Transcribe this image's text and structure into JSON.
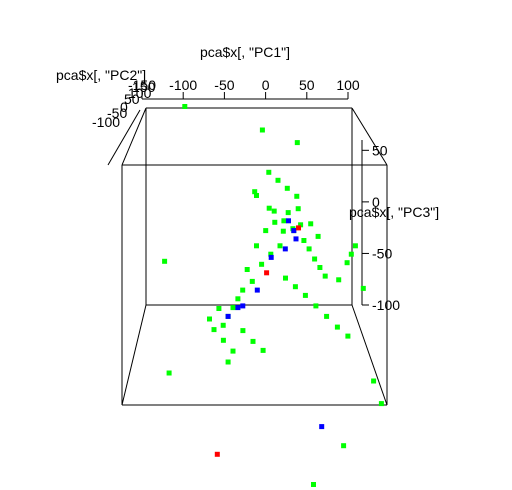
{
  "chart_data": {
    "type": "scatter3d",
    "title": "",
    "axes": {
      "x": {
        "label": "pca$x[, \"PC1\"]",
        "ticks": [
          "-150",
          "-100",
          "-50",
          "0",
          "50",
          "100"
        ],
        "range": [
          -150,
          100
        ]
      },
      "y": {
        "label": "pca$x[, \"PC2\"]",
        "ticks": [
          "-100",
          "-50",
          "0",
          "50",
          "100",
          "150"
        ],
        "range": [
          -100,
          150
        ]
      },
      "z": {
        "label": "pca$x[, \"PC3\"]",
        "ticks": [
          "50",
          "0",
          "-50",
          "-100"
        ],
        "range": [
          -100,
          60
        ]
      }
    },
    "box": true,
    "grid": false,
    "legend": "none",
    "series": [
      {
        "color": "#00ff00",
        "points": [
          [
            -10,
            120,
            48
          ],
          [
            -20,
            90,
            6
          ],
          [
            -18,
            90,
            3
          ],
          [
            30,
            110,
            40
          ],
          [
            0,
            50,
            0
          ],
          [
            10,
            40,
            -5
          ],
          [
            20,
            30,
            -10
          ],
          [
            30,
            20,
            -15
          ],
          [
            35,
            15,
            -20
          ],
          [
            40,
            5,
            -25
          ],
          [
            45,
            0,
            -30
          ],
          [
            50,
            -5,
            -35
          ],
          [
            25,
            35,
            5
          ],
          [
            15,
            45,
            0
          ],
          [
            5,
            25,
            -20
          ],
          [
            -5,
            20,
            -25
          ],
          [
            -15,
            10,
            -30
          ],
          [
            -25,
            0,
            -40
          ],
          [
            -35,
            -5,
            -45
          ],
          [
            -40,
            -10,
            -50
          ],
          [
            -45,
            -15,
            -55
          ],
          [
            -50,
            -20,
            -60
          ],
          [
            -55,
            -25,
            -65
          ],
          [
            -30,
            15,
            -35
          ],
          [
            -20,
            25,
            -20
          ],
          [
            -10,
            30,
            -10
          ],
          [
            0,
            35,
            -5
          ],
          [
            10,
            10,
            -40
          ],
          [
            20,
            5,
            -45
          ],
          [
            30,
            0,
            -50
          ],
          [
            40,
            -10,
            -55
          ],
          [
            50,
            -20,
            -60
          ],
          [
            60,
            -30,
            -65
          ],
          [
            70,
            -35,
            -70
          ],
          [
            25,
            55,
            10
          ],
          [
            15,
            60,
            15
          ],
          [
            5,
            65,
            20
          ],
          [
            -5,
            70,
            25
          ],
          [
            -60,
            40,
            -70
          ],
          [
            -70,
            30,
            -75
          ],
          [
            -65,
            20,
            -80
          ],
          [
            -55,
            10,
            -85
          ],
          [
            -45,
            0,
            -90
          ],
          [
            -50,
            -10,
            -95
          ],
          [
            -35,
            -20,
            -70
          ],
          [
            -25,
            -30,
            -75
          ],
          [
            -15,
            -35,
            -80
          ],
          [
            65,
            5,
            -40
          ],
          [
            75,
            15,
            -30
          ],
          [
            80,
            20,
            -25
          ],
          [
            85,
            25,
            -20
          ],
          [
            90,
            0,
            -45
          ],
          [
            95,
            -40,
            -100
          ],
          [
            100,
            -60,
            -110
          ],
          [
            60,
            -90,
            -130
          ],
          [
            30,
            -110,
            -150
          ],
          [
            -120,
            60,
            -40
          ],
          [
            -110,
            -20,
            -100
          ],
          [
            -100,
            100,
            70
          ],
          [
            -5,
            60,
            0
          ],
          [
            10,
            50,
            -15
          ],
          [
            20,
            45,
            -12
          ],
          [
            28,
            40,
            -8
          ],
          [
            38,
            30,
            -5
          ],
          [
            45,
            20,
            -12
          ]
        ]
      },
      {
        "color": "#0000ff",
        "points": [
          [
            15,
            40,
            -5
          ],
          [
            22,
            25,
            -15
          ],
          [
            10,
            15,
            -20
          ],
          [
            -5,
            10,
            -25
          ],
          [
            -20,
            -5,
            -45
          ],
          [
            -40,
            -15,
            -55
          ],
          [
            -50,
            -20,
            -60
          ],
          [
            -35,
            -10,
            -55
          ],
          [
            40,
            -80,
            -120
          ],
          [
            20,
            30,
            -10
          ]
        ]
      },
      {
        "color": "#ff0000",
        "points": [
          [
            25,
            30,
            -8
          ],
          [
            -10,
            5,
            -35
          ],
          [
            -60,
            -110,
            -130
          ]
        ]
      }
    ]
  }
}
